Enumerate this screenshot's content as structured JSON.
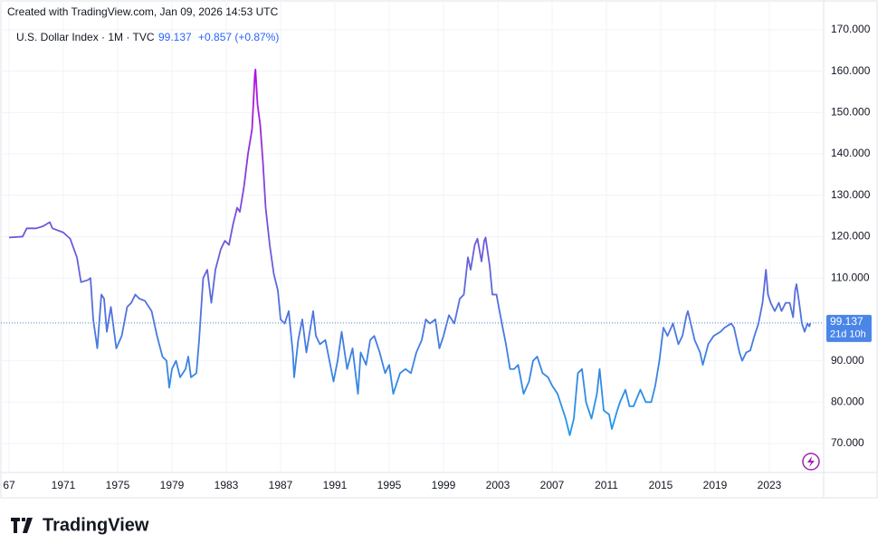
{
  "chart_data": {
    "type": "line",
    "caption": "Created with TradingView.com, Jan 09, 2026 14:53 UTC",
    "title": "U.S. Dollar Index · 1M · TVC",
    "last": 99.137,
    "change": "+0.857 (+0.87%)",
    "countdown": "21d 10h",
    "brand": "TradingView",
    "colors": [
      "#b30ee0",
      "#6a5fd8",
      "#1e9ae8"
    ],
    "grid": true,
    "x": [
      1967.0,
      1968.0,
      1968.3,
      1969.0,
      1969.5,
      1970.0,
      1970.2,
      1971.0,
      1971.5,
      1972.0,
      1972.3,
      1972.8,
      1973.0,
      1973.2,
      1973.5,
      1973.8,
      1974.0,
      1974.2,
      1974.5,
      1974.9,
      1975.3,
      1975.7,
      1976.0,
      1976.3,
      1976.6,
      1977.0,
      1977.5,
      1977.9,
      1978.3,
      1978.6,
      1978.8,
      1979.0,
      1979.3,
      1979.6,
      1980.0,
      1980.2,
      1980.4,
      1980.8,
      1981.0,
      1981.3,
      1981.6,
      1981.9,
      1982.2,
      1982.6,
      1982.9,
      1983.2,
      1983.5,
      1983.8,
      1984.0,
      1984.3,
      1984.6,
      1984.9,
      1985.1,
      1985.15,
      1985.3,
      1985.5,
      1985.7,
      1985.9,
      1986.2,
      1986.5,
      1986.8,
      1987.0,
      1987.3,
      1987.6,
      1987.9,
      1988.0,
      1988.3,
      1988.6,
      1988.9,
      1989.2,
      1989.4,
      1989.6,
      1989.9,
      1990.3,
      1990.6,
      1990.9,
      1991.2,
      1991.5,
      1991.9,
      1992.3,
      1992.7,
      1992.9,
      1993.3,
      1993.6,
      1993.9,
      1994.3,
      1994.7,
      1995.0,
      1995.3,
      1995.8,
      1996.2,
      1996.6,
      1997.0,
      1997.4,
      1997.7,
      1998.0,
      1998.4,
      1998.7,
      1999.0,
      1999.4,
      1999.8,
      2000.2,
      2000.5,
      2000.8,
      2001.0,
      2001.3,
      2001.5,
      2001.8,
      2002.0,
      2002.1,
      2002.4,
      2002.6,
      2002.9,
      2003.3,
      2003.6,
      2003.9,
      2004.2,
      2004.5,
      2004.9,
      2005.3,
      2005.6,
      2005.9,
      2006.3,
      2006.7,
      2007.0,
      2007.4,
      2007.7,
      2008.0,
      2008.3,
      2008.6,
      2008.9,
      2009.2,
      2009.5,
      2009.9,
      2010.3,
      2010.5,
      2010.8,
      2011.2,
      2011.4,
      2011.8,
      2012.0,
      2012.4,
      2012.7,
      2013.0,
      2013.5,
      2013.9,
      2014.3,
      2014.6,
      2014.9,
      2015.2,
      2015.5,
      2015.9,
      2016.3,
      2016.6,
      2016.9,
      2017.0,
      2017.5,
      2017.9,
      2018.1,
      2018.5,
      2018.9,
      2019.4,
      2019.7,
      2020.2,
      2020.4,
      2020.8,
      2021.0,
      2021.3,
      2021.6,
      2021.9,
      2022.2,
      2022.5,
      2022.75,
      2022.9,
      2023.1,
      2023.4,
      2023.7,
      2023.9,
      2024.2,
      2024.5,
      2024.75,
      2024.9,
      2025.0,
      2025.2,
      2025.4,
      2025.6,
      2025.8,
      2025.95,
      2026.02
    ],
    "values": [
      119.8,
      120,
      122,
      122,
      122.5,
      123.5,
      122,
      121,
      119.5,
      115,
      109,
      109.5,
      110,
      100,
      93,
      106,
      105,
      97,
      103,
      93,
      96,
      103,
      104,
      106,
      105,
      104.5,
      102,
      96,
      91,
      90,
      83.5,
      88,
      90,
      86,
      88,
      91,
      86,
      87,
      95,
      110,
      112,
      104,
      112,
      117,
      119,
      118,
      123,
      127,
      126,
      132,
      140,
      146,
      159,
      160.4,
      152,
      147,
      138,
      127,
      118,
      111,
      107,
      100,
      99,
      102,
      92,
      86,
      95,
      100,
      92,
      98,
      102,
      96,
      94,
      95,
      90,
      85,
      90,
      97,
      88,
      93,
      82,
      92,
      89,
      95,
      96,
      92,
      87,
      89,
      82,
      87,
      88,
      87,
      92,
      95,
      100,
      99,
      100,
      93,
      96,
      101,
      99,
      105,
      106,
      115,
      112,
      118,
      119.5,
      114,
      119,
      119.8,
      113,
      106,
      106,
      99,
      94,
      88,
      88,
      89,
      82,
      85,
      90,
      91,
      87,
      86,
      84,
      82,
      79,
      76,
      72,
      76,
      87,
      88,
      80,
      76,
      82,
      88,
      78,
      77,
      73.5,
      78,
      80,
      83,
      79,
      79,
      83,
      80,
      80,
      84,
      90,
      98,
      96,
      99,
      94,
      96,
      101,
      102,
      95,
      92,
      89,
      94,
      96,
      97,
      98,
      99,
      98,
      92,
      90,
      92,
      92.5,
      96,
      99,
      104,
      112,
      106,
      104,
      102,
      104,
      102,
      104,
      104,
      100.5,
      107,
      108.5,
      104,
      99,
      97,
      99,
      98.3,
      99.137
    ],
    "xlim": [
      1967,
      2027
    ],
    "xticks": [
      {
        "value": 1967,
        "label": "67"
      },
      1971,
      1975,
      1979,
      1983,
      1987,
      1991,
      1995,
      1999,
      2003,
      2007,
      2011,
      2015,
      2019,
      2023
    ],
    "ylim": [
      63,
      177.2
    ],
    "yticks": [
      {
        "value": 70,
        "label": "70.000"
      },
      {
        "value": 80,
        "label": "80.000"
      },
      {
        "value": 90,
        "label": "90.000"
      },
      {
        "value": 110,
        "label": "110.000"
      },
      {
        "value": 120,
        "label": "120.000"
      },
      {
        "value": 130,
        "label": "130.000"
      },
      {
        "value": 140,
        "label": "140.000"
      },
      {
        "value": 150,
        "label": "150.000"
      },
      {
        "value": 160,
        "label": "160.000"
      },
      {
        "value": 170,
        "label": "170.000"
      }
    ]
  }
}
